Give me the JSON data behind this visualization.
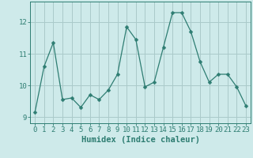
{
  "x": [
    0,
    1,
    2,
    3,
    4,
    5,
    6,
    7,
    8,
    9,
    10,
    11,
    12,
    13,
    14,
    15,
    16,
    17,
    18,
    19,
    20,
    21,
    22,
    23
  ],
  "y": [
    9.15,
    10.6,
    11.35,
    9.55,
    9.6,
    9.3,
    9.7,
    9.55,
    9.85,
    10.35,
    11.85,
    11.45,
    9.95,
    10.1,
    11.2,
    12.3,
    12.3,
    11.7,
    10.75,
    10.1,
    10.35,
    10.35,
    9.95,
    9.35
  ],
  "line_color": "#2e7d72",
  "marker": "D",
  "marker_size": 2.5,
  "bg_color": "#ceeaea",
  "grid_color": "#aacaca",
  "xlabel": "Humidex (Indice chaleur)",
  "ylim": [
    8.8,
    12.65
  ],
  "xlim": [
    -0.5,
    23.5
  ],
  "yticks": [
    9,
    10,
    11,
    12
  ],
  "xticks": [
    0,
    1,
    2,
    3,
    4,
    5,
    6,
    7,
    8,
    9,
    10,
    11,
    12,
    13,
    14,
    15,
    16,
    17,
    18,
    19,
    20,
    21,
    22,
    23
  ],
  "spine_color": "#2e7d72",
  "tick_color": "#2e7d72",
  "label_color": "#2e7d72",
  "font_size": 7.5
}
